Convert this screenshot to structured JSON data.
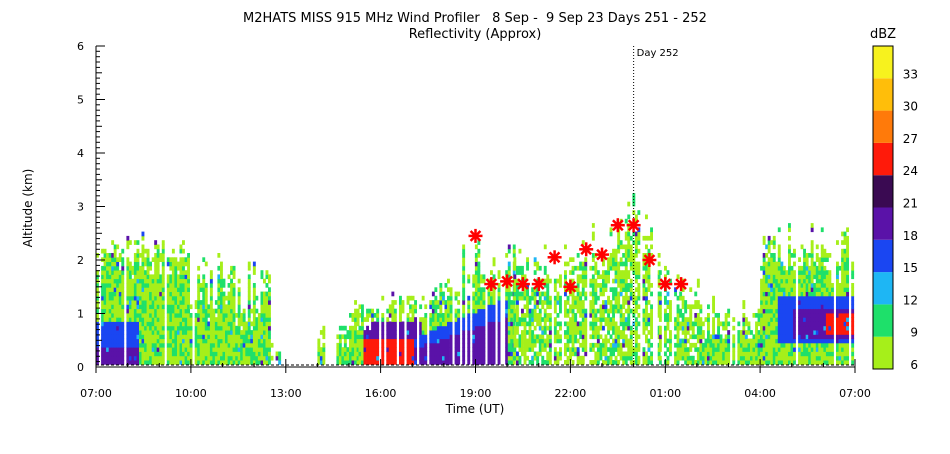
{
  "chart_data": {
    "type": "heatmap",
    "title": "M2HATS MISS 915 MHz Wind Profiler   8 Sep -  9 Sep 23 Days 251 - 252",
    "subtitle": "Reflectivity (Approx)",
    "xlabel": "Time (UT)",
    "ylabel": "Altitude (km)",
    "x_ticks": [
      "07:00",
      "10:00",
      "13:00",
      "16:00",
      "19:00",
      "22:00",
      "01:00",
      "04:00",
      "07:00"
    ],
    "x_range_hours": [
      0,
      24
    ],
    "y_ticks": [
      "0",
      "1",
      "2",
      "3",
      "4",
      "5",
      "6"
    ],
    "y_range_km": [
      0,
      6
    ],
    "annotation": {
      "text": "Day 252",
      "x_hours": 17
    },
    "colorbar": {
      "title": "dBZ",
      "levels": [
        "6",
        "9",
        "12",
        "15",
        "18",
        "21",
        "24",
        "27",
        "30",
        "33"
      ],
      "colors": [
        "#a6ef1a",
        "#1ee06a",
        "#1eb6f4",
        "#1a46f2",
        "#5a12a8",
        "#3a0a52",
        "#ff1a0a",
        "#ff7a0a",
        "#ffbe0a",
        "#f7f21e"
      ]
    },
    "markers": {
      "symbol": "asterisk",
      "color": "#ff0000",
      "points": [
        {
          "t_hours": 12.0,
          "alt_km": 2.45
        },
        {
          "t_hours": 12.5,
          "alt_km": 1.55
        },
        {
          "t_hours": 13.0,
          "alt_km": 1.6
        },
        {
          "t_hours": 13.5,
          "alt_km": 1.55
        },
        {
          "t_hours": 14.0,
          "alt_km": 1.55
        },
        {
          "t_hours": 14.5,
          "alt_km": 2.05
        },
        {
          "t_hours": 15.0,
          "alt_km": 1.5
        },
        {
          "t_hours": 15.5,
          "alt_km": 2.2
        },
        {
          "t_hours": 16.0,
          "alt_km": 2.1
        },
        {
          "t_hours": 16.5,
          "alt_km": 2.65
        },
        {
          "t_hours": 17.0,
          "alt_km": 2.65
        },
        {
          "t_hours": 17.5,
          "alt_km": 2.0
        },
        {
          "t_hours": 18.0,
          "alt_km": 1.55
        },
        {
          "t_hours": 18.5,
          "alt_km": 1.55
        }
      ]
    }
  }
}
